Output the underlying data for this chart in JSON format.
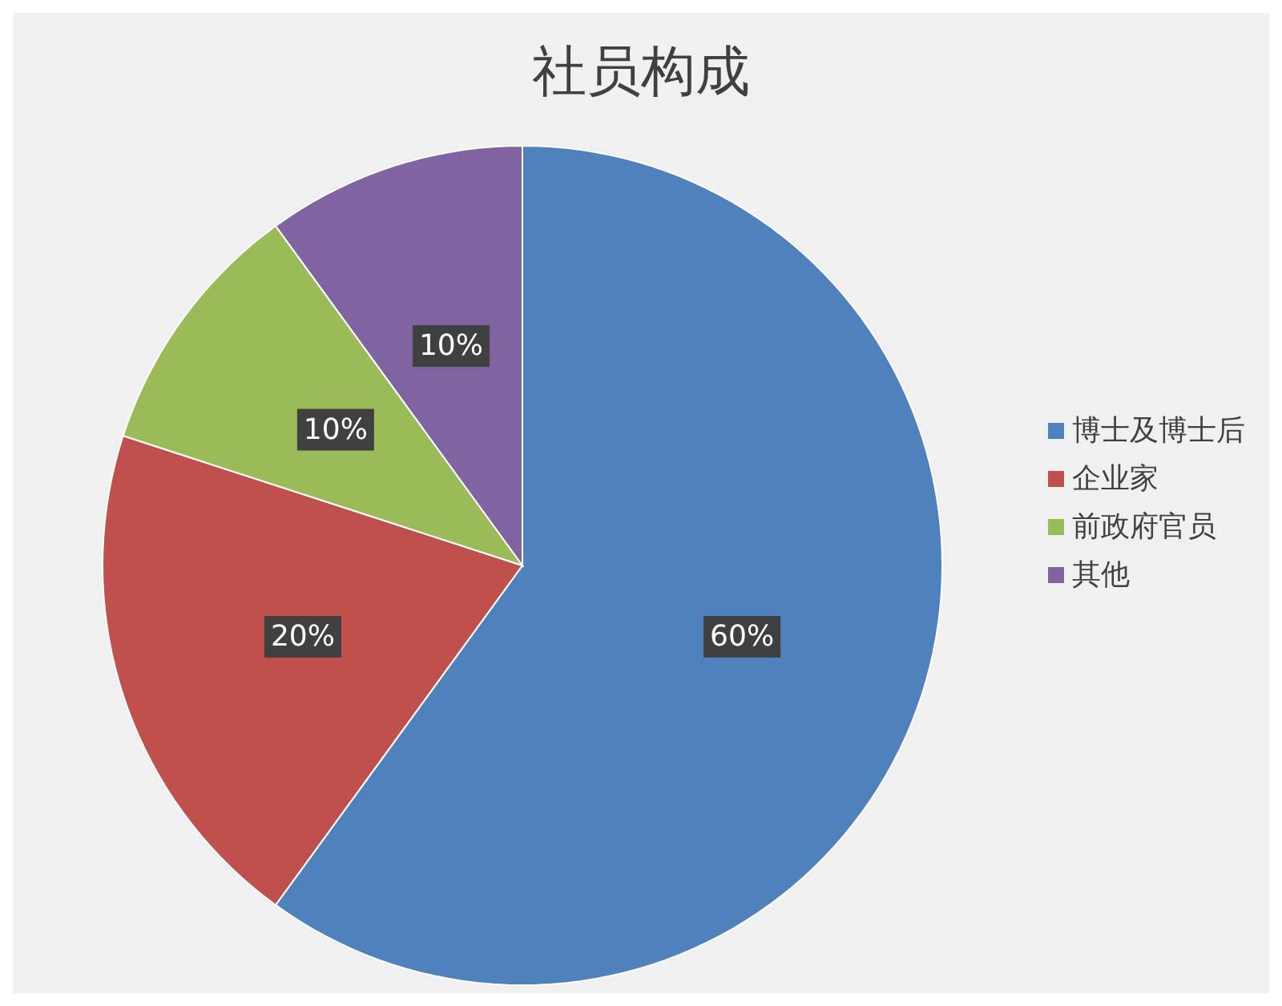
{
  "chart_data": {
    "type": "pie",
    "title": "社员构成",
    "categories": [
      "博士及博士后",
      "企业家",
      "前政府官员",
      "其他"
    ],
    "values": [
      60,
      20,
      10,
      10
    ],
    "colors": [
      "#4f81bd",
      "#c0504d",
      "#9bbb59",
      "#8064a2"
    ],
    "value_labels": [
      "60%",
      "20%",
      "10%",
      "10%"
    ],
    "legend": "right"
  }
}
